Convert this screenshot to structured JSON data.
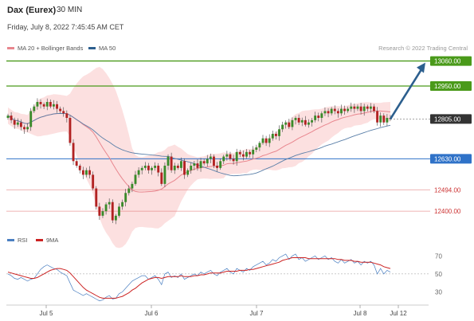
{
  "header": {
    "instrument": "Dax (Eurex)",
    "timeframe": "30 MIN",
    "datetime": "Friday, July 8, 2022 7:45:45 AM CET"
  },
  "legend": {
    "items": [
      {
        "label": "MA 20 + Bollinger Bands",
        "color": "#e8868e"
      },
      {
        "label": "MA 50",
        "color": "#2c5f8e"
      }
    ],
    "credit": "Research © 2022 Trading Central"
  },
  "sub_legend": {
    "items": [
      {
        "label": "RSI",
        "color": "#4a7fc1"
      },
      {
        "label": "9MA",
        "color": "#cc2222"
      }
    ]
  },
  "chart_data": [
    {
      "type": "candlestick",
      "x_ticks": [
        "Jul 5",
        "Jul 6",
        "Jul 7",
        "Jul 8",
        "Jul 12"
      ],
      "ylim": [
        12320,
        13090
      ],
      "levels": [
        {
          "value": 13060,
          "label": "13060.00",
          "color": "#4a9a1a",
          "style": "resistance"
        },
        {
          "value": 12950,
          "label": "12950.00",
          "color": "#4a9a1a",
          "style": "resistance"
        },
        {
          "value": 12805,
          "label": "12805.00",
          "color": "#333333",
          "style": "current"
        },
        {
          "value": 12630,
          "label": "12630.00",
          "color": "#2f72c8",
          "style": "pivot"
        },
        {
          "value": 12494,
          "label": "12494.00",
          "color": "#e07070",
          "style": "support"
        },
        {
          "value": 12400,
          "label": "12400.00",
          "color": "#e07070",
          "style": "support"
        }
      ],
      "arrow": {
        "from": 12805,
        "to": 13060
      },
      "close": [
        12820,
        12800,
        12780,
        12790,
        12770,
        12760,
        12770,
        12840,
        12860,
        12880,
        12870,
        12860,
        12880,
        12860,
        12870,
        12850,
        12840,
        12830,
        12810,
        12700,
        12620,
        12600,
        12580,
        12560,
        12580,
        12560,
        12500,
        12420,
        12380,
        12400,
        12430,
        12440,
        12360,
        12380,
        12420,
        12440,
        12480,
        12500,
        12520,
        12560,
        12580,
        12590,
        12600,
        12580,
        12590,
        12600,
        12570,
        12520,
        12600,
        12640,
        12580,
        12600,
        12590,
        12620,
        12560,
        12580,
        12600,
        12610,
        12590,
        12620,
        12610,
        12630,
        12640,
        12600,
        12590,
        12620,
        12640,
        12650,
        12630,
        12620,
        12660,
        12650,
        12640,
        12660,
        12650,
        12670,
        12680,
        12700,
        12720,
        12700,
        12720,
        12740,
        12730,
        12760,
        12780,
        12790,
        12770,
        12800,
        12810,
        12790,
        12800,
        12780,
        12790,
        12800,
        12820,
        12810,
        12830,
        12840,
        12830,
        12850,
        12840,
        12830,
        12850,
        12840,
        12850,
        12860,
        12850,
        12860,
        12840,
        12860,
        12850,
        12860,
        12840,
        12790,
        12820,
        12790,
        12810,
        12805
      ]
    },
    {
      "type": "line",
      "title": "RSI",
      "yticks": [
        30,
        50,
        70
      ],
      "ylim": [
        18,
        80
      ],
      "series": [
        {
          "name": "RSI",
          "color": "#4a7fc1",
          "values": [
            50,
            48,
            45,
            44,
            46,
            44,
            42,
            44,
            45,
            50,
            55,
            58,
            60,
            58,
            56,
            55,
            52,
            50,
            48,
            40,
            32,
            30,
            28,
            26,
            28,
            26,
            24,
            22,
            20,
            21,
            24,
            26,
            22,
            23,
            28,
            30,
            34,
            38,
            42,
            44,
            46,
            48,
            48,
            44,
            46,
            48,
            44,
            38,
            50,
            52,
            46,
            48,
            46,
            50,
            44,
            46,
            48,
            50,
            48,
            52,
            50,
            52,
            54,
            50,
            48,
            52,
            54,
            56,
            52,
            50,
            56,
            54,
            52,
            56,
            54,
            58,
            60,
            62,
            64,
            60,
            62,
            66,
            64,
            68,
            70,
            72,
            66,
            70,
            72,
            66,
            68,
            64,
            66,
            68,
            70,
            66,
            68,
            70,
            66,
            68,
            64,
            62,
            66,
            62,
            64,
            66,
            62,
            64,
            60,
            64,
            62,
            64,
            60,
            50,
            56,
            50,
            54,
            52
          ]
        },
        {
          "name": "9MA",
          "color": "#cc2222",
          "values": [
            52,
            51,
            50,
            49,
            48,
            47,
            46,
            45,
            45,
            46,
            48,
            50,
            52,
            54,
            55,
            56,
            56,
            55,
            54,
            51,
            47,
            43,
            39,
            35,
            32,
            30,
            28,
            26,
            24,
            23,
            23,
            23,
            23,
            23,
            24,
            25,
            27,
            29,
            32,
            34,
            37,
            40,
            42,
            44,
            45,
            46,
            46,
            45,
            46,
            47,
            47,
            47,
            47,
            48,
            47,
            47,
            47,
            48,
            48,
            49,
            49,
            50,
            51,
            51,
            51,
            51,
            52,
            53,
            53,
            53,
            53,
            54,
            54,
            54,
            55,
            55,
            56,
            57,
            58,
            59,
            60,
            61,
            62,
            63,
            65,
            66,
            67,
            68,
            68,
            68,
            68,
            68,
            67,
            67,
            67,
            67,
            67,
            67,
            67,
            67,
            67,
            66,
            66,
            65,
            65,
            65,
            64,
            64,
            63,
            63,
            63,
            63,
            62,
            61,
            60,
            58,
            57,
            56
          ]
        }
      ],
      "ref_line": 50
    }
  ]
}
